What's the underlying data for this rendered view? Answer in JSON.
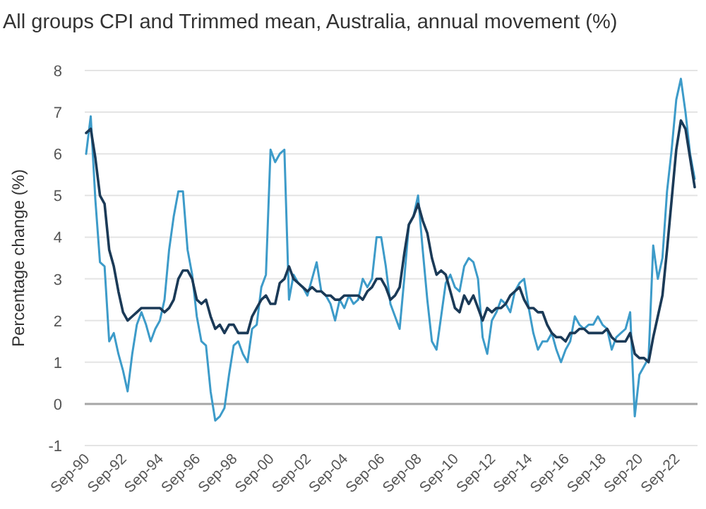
{
  "chart_data": {
    "type": "line",
    "title": "All groups CPI and Trimmed mean, Australia, annual movement (%)",
    "ylabel": "Percentage change (%)",
    "categories": [
      "Sep-90",
      null,
      null,
      null,
      null,
      null,
      null,
      null,
      "Sep-92",
      null,
      null,
      null,
      null,
      null,
      null,
      null,
      "Sep-94",
      null,
      null,
      null,
      null,
      null,
      null,
      null,
      "Sep-96",
      null,
      null,
      null,
      null,
      null,
      null,
      null,
      "Sep-98",
      null,
      null,
      null,
      null,
      null,
      null,
      null,
      "Sep-00",
      null,
      null,
      null,
      null,
      null,
      null,
      null,
      "Sep-02",
      null,
      null,
      null,
      null,
      null,
      null,
      null,
      "Sep-04",
      null,
      null,
      null,
      null,
      null,
      null,
      null,
      "Sep-06",
      null,
      null,
      null,
      null,
      null,
      null,
      null,
      "Sep-08",
      null,
      null,
      null,
      null,
      null,
      null,
      null,
      "Sep-10",
      null,
      null,
      null,
      null,
      null,
      null,
      null,
      "Sep-12",
      null,
      null,
      null,
      null,
      null,
      null,
      null,
      "Sep-14",
      null,
      null,
      null,
      null,
      null,
      null,
      null,
      "Sep-16",
      null,
      null,
      null,
      null,
      null,
      null,
      null,
      "Sep-18",
      null,
      null,
      null,
      null,
      null,
      null,
      null,
      "Sep-20",
      null,
      null,
      null,
      null,
      null,
      null,
      null,
      "Sep-22",
      null,
      null,
      null,
      null
    ],
    "series": [
      {
        "color": "#3d9bc9",
        "values": [
          6.0,
          6.9,
          4.9,
          3.4,
          3.3,
          1.5,
          1.7,
          1.2,
          0.8,
          0.3,
          1.2,
          1.9,
          2.2,
          1.9,
          1.5,
          1.8,
          2.0,
          2.5,
          3.7,
          4.5,
          5.1,
          5.1,
          3.7,
          3.1,
          2.1,
          1.5,
          1.4,
          0.3,
          -0.4,
          -0.3,
          -0.1,
          0.7,
          1.4,
          1.5,
          1.2,
          1.0,
          1.8,
          1.9,
          2.8,
          3.1,
          6.1,
          5.8,
          6.0,
          6.1,
          2.5,
          3.1,
          2.9,
          2.8,
          2.6,
          3.0,
          3.4,
          2.7,
          2.6,
          2.4,
          2.0,
          2.5,
          2.3,
          2.6,
          2.4,
          2.5,
          3.0,
          2.8,
          3.0,
          4.0,
          4.0,
          3.3,
          2.4,
          2.1,
          1.8,
          3.0,
          4.3,
          4.5,
          5.0,
          3.7,
          2.5,
          1.5,
          1.3,
          2.1,
          2.9,
          3.1,
          2.8,
          2.7,
          3.3,
          3.5,
          3.4,
          3.0,
          1.6,
          1.2,
          2.0,
          2.2,
          2.5,
          2.4,
          2.2,
          2.7,
          2.9,
          3.0,
          2.3,
          1.7,
          1.3,
          1.5,
          1.5,
          1.7,
          1.3,
          1.0,
          1.3,
          1.5,
          2.1,
          1.9,
          1.8,
          1.9,
          1.9,
          2.1,
          1.9,
          1.8,
          1.3,
          1.6,
          1.7,
          1.8,
          2.2,
          -0.3,
          0.7,
          0.9,
          1.1,
          3.8,
          3.0,
          3.5,
          5.1,
          6.1,
          7.3,
          7.8,
          7.0,
          6.0,
          5.4
        ]
      },
      {
        "color": "#1b3a57",
        "values": [
          6.5,
          6.6,
          5.9,
          5.0,
          4.8,
          3.7,
          3.3,
          2.7,
          2.2,
          2.0,
          2.1,
          2.2,
          2.3,
          2.3,
          2.3,
          2.3,
          2.3,
          2.2,
          2.3,
          2.5,
          3.0,
          3.2,
          3.2,
          3.0,
          2.5,
          2.4,
          2.5,
          2.1,
          1.8,
          1.9,
          1.7,
          1.9,
          1.9,
          1.7,
          1.7,
          1.7,
          2.1,
          2.3,
          2.5,
          2.6,
          2.4,
          2.4,
          2.9,
          3.0,
          3.3,
          3.0,
          2.9,
          2.8,
          2.7,
          2.8,
          2.7,
          2.7,
          2.6,
          2.6,
          2.5,
          2.5,
          2.6,
          2.6,
          2.6,
          2.6,
          2.5,
          2.7,
          2.8,
          3.0,
          3.0,
          2.8,
          2.5,
          2.6,
          2.8,
          3.6,
          4.3,
          4.5,
          4.8,
          4.4,
          4.1,
          3.5,
          3.1,
          3.2,
          3.1,
          2.7,
          2.3,
          2.2,
          2.6,
          2.4,
          2.6,
          2.3,
          2.0,
          2.3,
          2.2,
          2.3,
          2.3,
          2.4,
          2.6,
          2.7,
          2.8,
          2.5,
          2.3,
          2.3,
          2.2,
          2.2,
          1.9,
          1.7,
          1.6,
          1.6,
          1.5,
          1.7,
          1.7,
          1.8,
          1.8,
          1.7,
          1.7,
          1.7,
          1.7,
          1.8,
          1.6,
          1.5,
          1.5,
          1.5,
          1.7,
          1.2,
          1.1,
          1.1,
          1.0,
          1.6,
          2.1,
          2.6,
          3.7,
          4.9,
          6.1,
          6.8,
          6.6,
          5.9,
          5.2
        ]
      }
    ],
    "ylim": [
      -1,
      8
    ],
    "yticks": [
      -1,
      0,
      1,
      2,
      3,
      4,
      5,
      6,
      7,
      8
    ],
    "grid": "y"
  }
}
